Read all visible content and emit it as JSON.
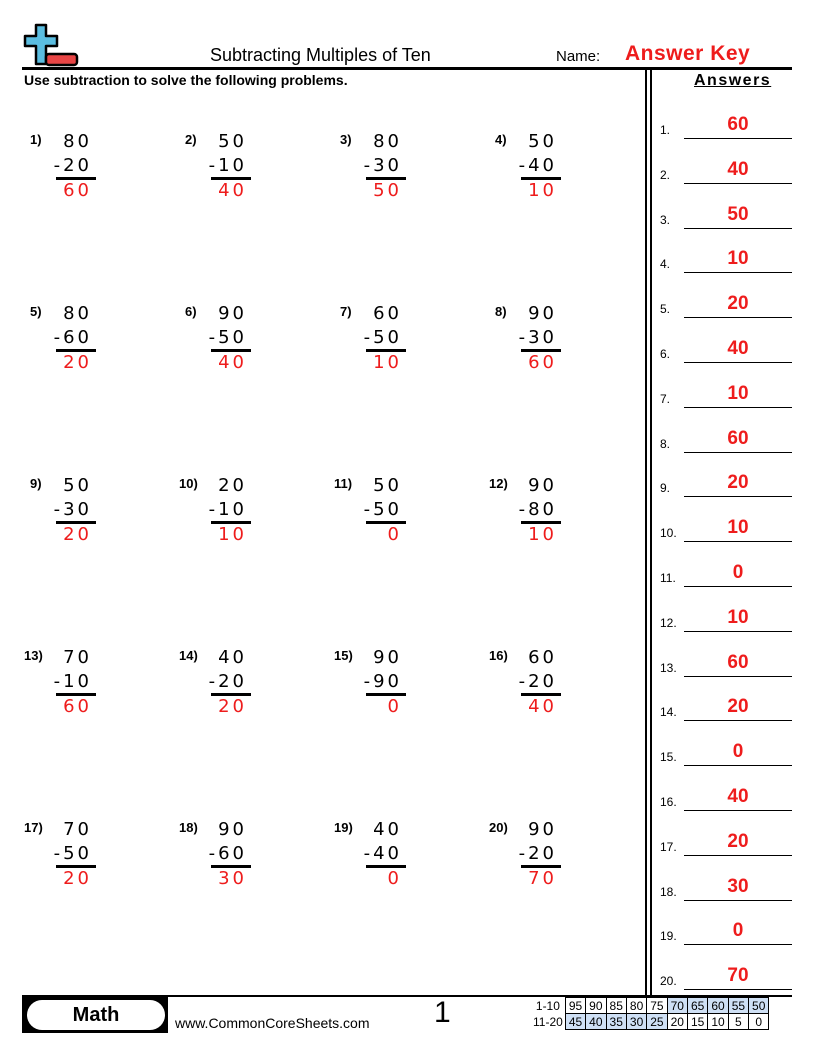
{
  "header": {
    "title": "Subtracting Multiples of Ten",
    "name_label": "Name:",
    "name_value": "Answer Key",
    "instructions": "Use subtraction to solve the following problems."
  },
  "colors": {
    "answer": "#ee1c1c",
    "logo_plus": "#5bbde0",
    "logo_minus": "#e84545",
    "score_highlight": "#cfe0f5"
  },
  "logo": {
    "icon": "plus-minus-logo"
  },
  "problems": [
    {
      "n": "1)",
      "top": "80",
      "bottom": "-20",
      "answer": "60"
    },
    {
      "n": "2)",
      "top": "50",
      "bottom": "-10",
      "answer": "40"
    },
    {
      "n": "3)",
      "top": "80",
      "bottom": "-30",
      "answer": "50"
    },
    {
      "n": "4)",
      "top": "50",
      "bottom": "-40",
      "answer": "10"
    },
    {
      "n": "5)",
      "top": "80",
      "bottom": "-60",
      "answer": "20"
    },
    {
      "n": "6)",
      "top": "90",
      "bottom": "-50",
      "answer": "40"
    },
    {
      "n": "7)",
      "top": "60",
      "bottom": "-50",
      "answer": "10"
    },
    {
      "n": "8)",
      "top": "90",
      "bottom": "-30",
      "answer": "60"
    },
    {
      "n": "9)",
      "top": "50",
      "bottom": "-30",
      "answer": "20"
    },
    {
      "n": "10)",
      "top": "20",
      "bottom": "-10",
      "answer": "10"
    },
    {
      "n": "11)",
      "top": "50",
      "bottom": "-50",
      "answer": "0"
    },
    {
      "n": "12)",
      "top": "90",
      "bottom": "-80",
      "answer": "10"
    },
    {
      "n": "13)",
      "top": "70",
      "bottom": "-10",
      "answer": "60"
    },
    {
      "n": "14)",
      "top": "40",
      "bottom": "-20",
      "answer": "20"
    },
    {
      "n": "15)",
      "top": "90",
      "bottom": "-90",
      "answer": "0"
    },
    {
      "n": "16)",
      "top": "60",
      "bottom": "-20",
      "answer": "40"
    },
    {
      "n": "17)",
      "top": "70",
      "bottom": "-50",
      "answer": "20"
    },
    {
      "n": "18)",
      "top": "90",
      "bottom": "-60",
      "answer": "30"
    },
    {
      "n": "19)",
      "top": "40",
      "bottom": "-40",
      "answer": "0"
    },
    {
      "n": "20)",
      "top": "90",
      "bottom": "-20",
      "answer": "70"
    }
  ],
  "answers_panel": {
    "heading": "Answers",
    "items": [
      {
        "n": "1.",
        "v": "60"
      },
      {
        "n": "2.",
        "v": "40"
      },
      {
        "n": "3.",
        "v": "50"
      },
      {
        "n": "4.",
        "v": "10"
      },
      {
        "n": "5.",
        "v": "20"
      },
      {
        "n": "6.",
        "v": "40"
      },
      {
        "n": "7.",
        "v": "10"
      },
      {
        "n": "8.",
        "v": "60"
      },
      {
        "n": "9.",
        "v": "20"
      },
      {
        "n": "10.",
        "v": "10"
      },
      {
        "n": "11.",
        "v": "0"
      },
      {
        "n": "12.",
        "v": "10"
      },
      {
        "n": "13.",
        "v": "60"
      },
      {
        "n": "14.",
        "v": "20"
      },
      {
        "n": "15.",
        "v": "0"
      },
      {
        "n": "16.",
        "v": "40"
      },
      {
        "n": "17.",
        "v": "20"
      },
      {
        "n": "18.",
        "v": "30"
      },
      {
        "n": "19.",
        "v": "0"
      },
      {
        "n": "20.",
        "v": "70"
      }
    ]
  },
  "footer": {
    "subject": "Math",
    "site": "www.CommonCoreSheets.com",
    "page": "1",
    "score": {
      "rows": [
        {
          "label": "1-10",
          "values": [
            "95",
            "90",
            "85",
            "80",
            "75",
            "70",
            "65",
            "60",
            "55",
            "50"
          ],
          "highlight": [
            false,
            false,
            false,
            false,
            false,
            true,
            true,
            true,
            true,
            true
          ]
        },
        {
          "label": "11-20",
          "values": [
            "45",
            "40",
            "35",
            "30",
            "25",
            "20",
            "15",
            "10",
            "5",
            "0"
          ],
          "highlight": [
            true,
            true,
            true,
            true,
            true,
            false,
            false,
            false,
            false,
            false
          ]
        }
      ]
    }
  }
}
